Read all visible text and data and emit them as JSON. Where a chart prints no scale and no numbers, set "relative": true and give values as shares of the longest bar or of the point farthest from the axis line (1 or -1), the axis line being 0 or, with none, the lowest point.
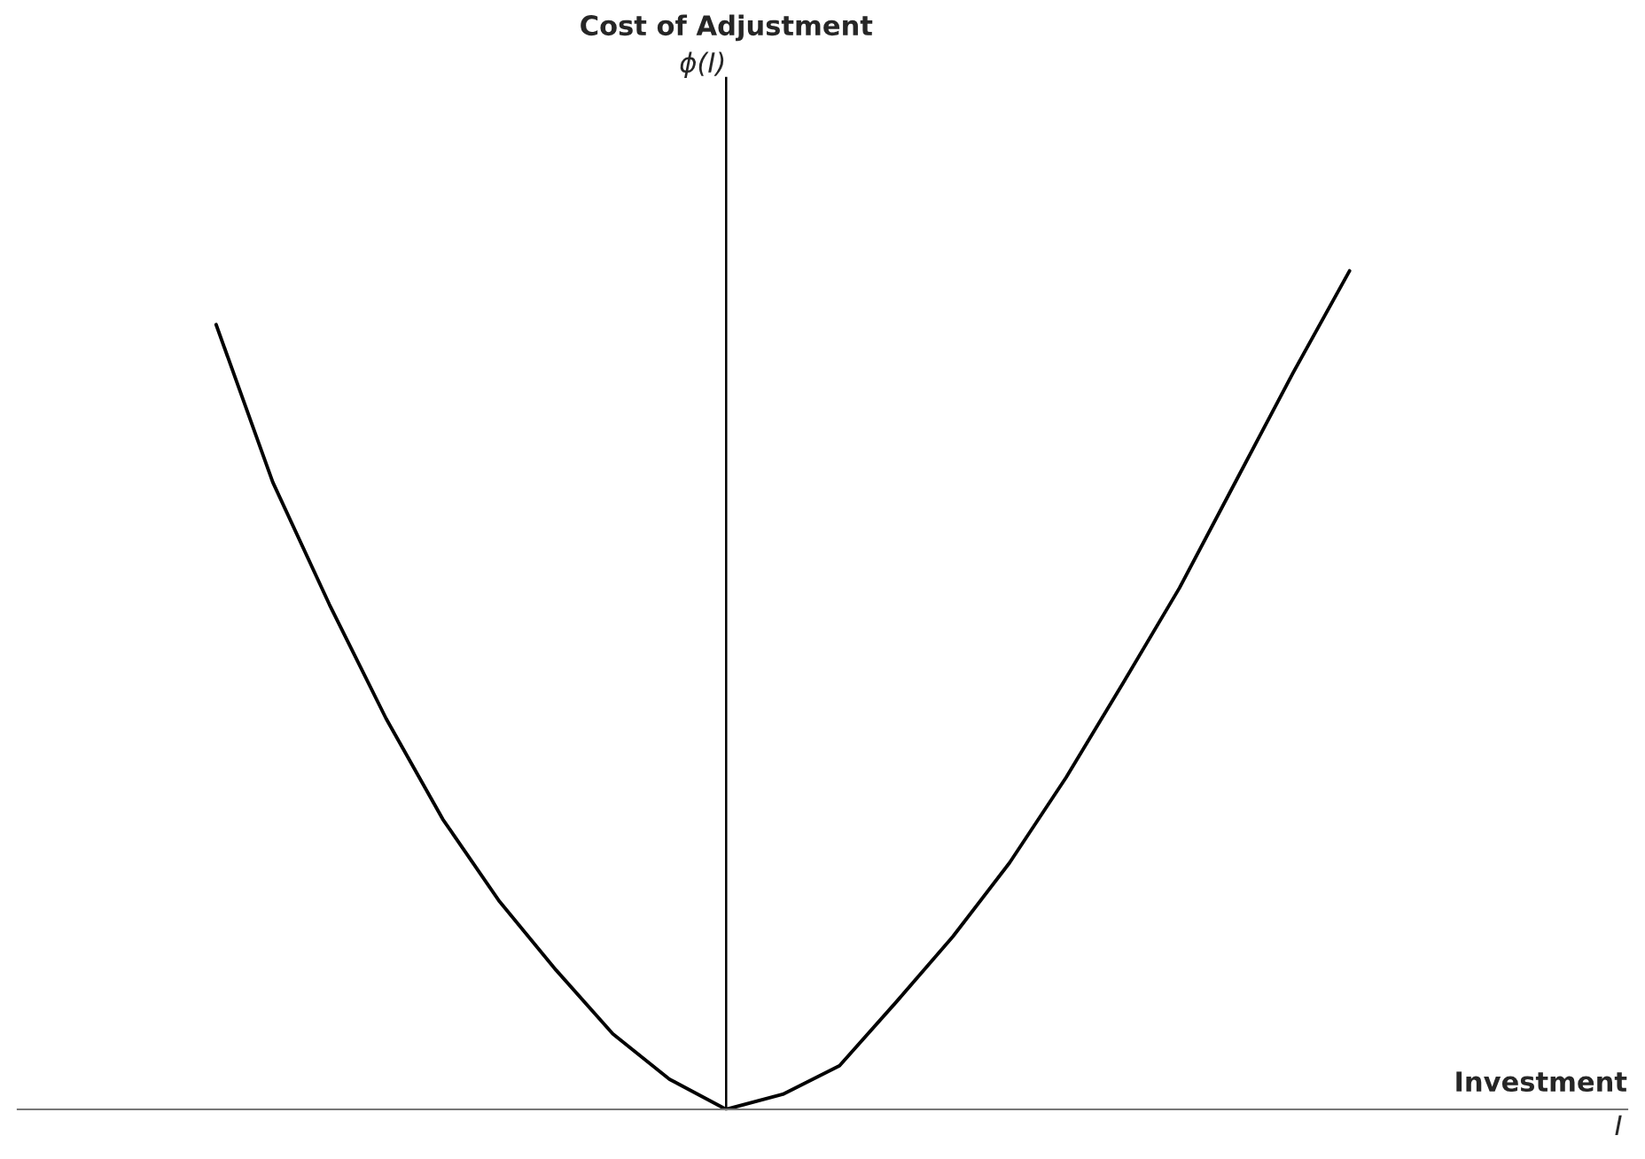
{
  "chart_data": {
    "type": "line",
    "relative": true,
    "xlabel": "Investment\nI",
    "annotations": [
      "Cost of Adjustment",
      "ϕ(I)"
    ],
    "categories": [
      null,
      null,
      null,
      null,
      null,
      null,
      null,
      null,
      null,
      null,
      null,
      null,
      null,
      null,
      null,
      null,
      null,
      null,
      null,
      null,
      null
    ],
    "series": [
      {
        "color": "#000000",
        "values": [
          0.936,
          0.748,
          0.602,
          0.466,
          0.346,
          0.248,
          0.166,
          0.09,
          0.036,
          0,
          0.018,
          0.052,
          0.128,
          0.206,
          0.294,
          0.396,
          0.508,
          0.622,
          0.75,
          0.878,
          1
        ]
      }
    ],
    "legend": false
  }
}
